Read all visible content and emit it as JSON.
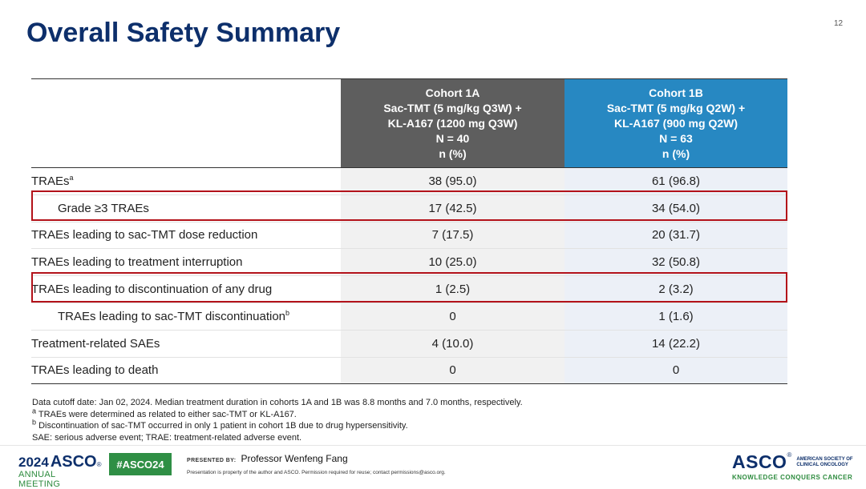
{
  "slide": {
    "title": "Overall Safety Summary",
    "page_number": "12"
  },
  "table": {
    "headers": [
      {
        "lines": [
          "Cohort 1A",
          "Sac-TMT (5 mg/kg Q3W) +",
          "KL-A167 (1200 mg Q3W)",
          "N = 40",
          "n (%)"
        ]
      },
      {
        "lines": [
          "Cohort 1B",
          "Sac-TMT (5 mg/kg Q2W) +",
          "KL-A167 (900 mg Q2W)",
          "N = 63",
          "n (%)"
        ]
      }
    ],
    "rows": [
      {
        "label": "TRAEs",
        "sup": "a",
        "cohort_1a": "38 (95.0)",
        "cohort_1b": "61 (96.8)"
      },
      {
        "label": "Grade ≥3 TRAEs",
        "sup": "",
        "cohort_1a": "17 (42.5)",
        "cohort_1b": "34 (54.0)"
      },
      {
        "label": "TRAEs leading to sac-TMT dose reduction",
        "sup": "",
        "cohort_1a": "7 (17.5)",
        "cohort_1b": "20 (31.7)"
      },
      {
        "label": "TRAEs leading to treatment interruption",
        "sup": "",
        "cohort_1a": "10 (25.0)",
        "cohort_1b": "32 (50.8)"
      },
      {
        "label": "TRAEs leading to discontinuation of any drug",
        "sup": "",
        "cohort_1a": "1 (2.5)",
        "cohort_1b": "2 (3.2)"
      },
      {
        "label": "TRAEs leading to sac-TMT discontinuation",
        "sup": "b",
        "cohort_1a": "0",
        "cohort_1b": "1 (1.6)"
      },
      {
        "label": "Treatment-related SAEs",
        "sup": "",
        "cohort_1a": "4 (10.0)",
        "cohort_1b": "14 (22.2)"
      },
      {
        "label": "TRAEs leading to death",
        "sup": "",
        "cohort_1a": "0",
        "cohort_1b": "0"
      }
    ]
  },
  "footnotes": {
    "cutoff": "Data cutoff date: Jan 02, 2024. Median treatment duration in cohorts 1A and 1B was 8.8 months and 7.0 months, respectively.",
    "a_marker": "a",
    "a_text": " TRAEs were determined as related to either sac-TMT or KL-A167.",
    "b_marker": "b",
    "b_text": " Discontinuation of sac-TMT occurred in only 1 patient in cohort 1B due to drug hypersensitivity.",
    "abbrev": "SAE: serious adverse event; TRAE: treatment-related adverse event."
  },
  "footer": {
    "meeting_year": "2024",
    "meeting_org": "ASCO",
    "meeting_reg": "®",
    "meeting_sub": "ANNUAL MEETING",
    "hashtag": "#ASCO24",
    "presented_by_label": "PRESENTED BY:",
    "presenter": "Professor Wenfeng Fang",
    "notice": "Presentation is property of the author and ASCO. Permission required for reuse; contact permissions@asco.org.",
    "org_logo": "ASCO",
    "org_reg": "®",
    "org_line1": "AMERICAN SOCIETY OF",
    "org_line2": "CLINICAL ONCOLOGY",
    "org_tagline": "KNOWLEDGE CONQUERS CANCER"
  },
  "colors": {
    "title": "#0d2f6b",
    "cohort_1a_header": "#5e5e5e",
    "cohort_1b_header": "#2788c2",
    "highlight_box": "#b3121a",
    "hashtag_bg": "#2f8f45"
  }
}
